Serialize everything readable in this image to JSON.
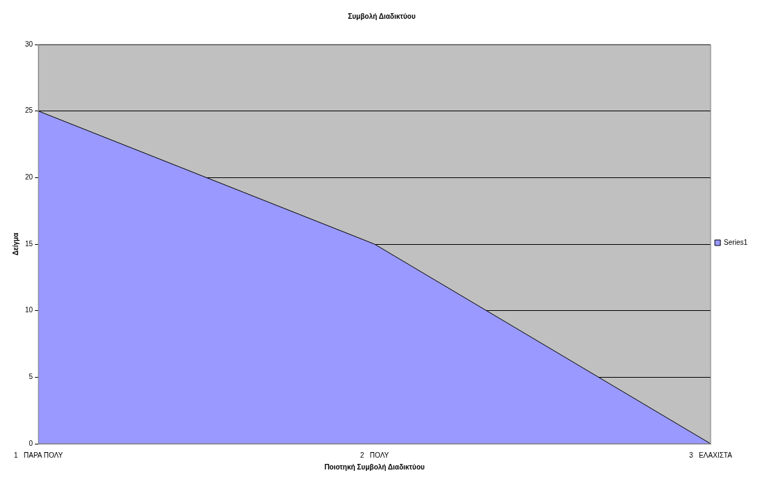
{
  "chart_data": {
    "type": "area",
    "title": "Συμβολή Διαδικτύου",
    "xlabel": "Ποιοτηκή Συμβολή Διαδικτύου",
    "ylabel": "Δείγμα",
    "categories": [
      "1   ΠΑΡΑ ΠΟΛΥ",
      "2   ΠΟΛΥ",
      "3   ΕΛΑΧΙΣΤΑ"
    ],
    "series": [
      {
        "name": "Series1",
        "color": "#9999ff",
        "values": [
          25,
          15,
          0
        ]
      }
    ],
    "ylim": [
      0,
      30
    ],
    "yticks": [
      0,
      5,
      10,
      15,
      20,
      25,
      30
    ],
    "grid": "y",
    "legend": "right",
    "marker": "none"
  }
}
